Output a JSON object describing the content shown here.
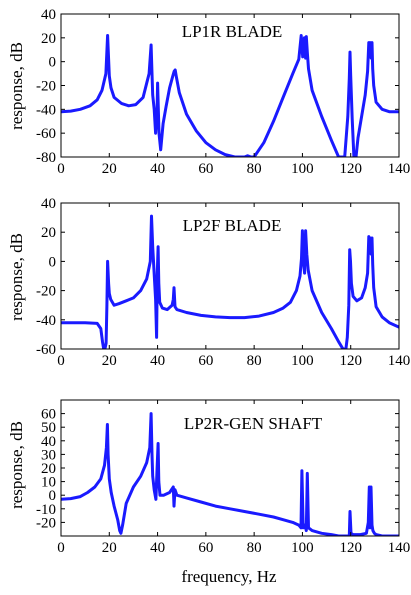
{
  "chart_data": [
    {
      "type": "line",
      "title": "LP1R BLADE",
      "xlabel": "",
      "ylabel": "response, dB",
      "xlim": [
        0,
        140
      ],
      "ylim": [
        -80,
        40
      ],
      "xticks": [
        "0",
        "20",
        "40",
        "60",
        "80",
        "100",
        "120",
        "140"
      ],
      "yticks": [
        "-80",
        "-60",
        "-40",
        "-20",
        "0",
        "20",
        "40"
      ],
      "grid": false,
      "series": [
        {
          "color": "#1a1aff",
          "x": [
            0,
            4,
            8,
            12,
            15,
            17,
            18.6,
            19.3,
            19.7,
            20,
            20.7,
            22,
            25,
            28,
            31,
            34,
            36.5,
            37.3,
            37.7,
            38,
            38.6,
            39.2,
            39.8,
            40,
            40.6,
            41.3,
            42.3,
            43.5,
            45,
            46.3,
            46.9,
            47.3,
            47.7,
            49,
            52,
            56,
            60,
            64,
            68,
            72,
            76,
            77.3,
            78.7,
            80,
            84,
            88,
            92,
            96,
            98.5,
            99.5,
            100.1,
            100.4,
            100.8,
            101.3,
            101.6,
            102,
            102.5,
            104,
            108,
            112,
            115,
            117.5,
            118.8,
            119.4,
            119.7,
            120,
            120.6,
            121.3,
            121.9,
            122.2,
            123,
            124.5,
            126,
            127,
            127.5,
            127.8,
            128.1,
            128.5,
            128.8,
            129.1,
            129.5,
            130.5,
            133,
            136,
            140
          ],
          "y": [
            -42,
            -41.5,
            -40,
            -37,
            -32,
            -24,
            -10,
            22,
            2,
            -12,
            -22,
            -30,
            -35,
            -37,
            -36,
            -30,
            -10,
            14,
            -10,
            -28,
            -40,
            -60,
            -40,
            -18,
            -60,
            -74,
            -52,
            -38,
            -22,
            -12,
            -8,
            -7,
            -12,
            -26,
            -44,
            -58,
            -68,
            -74,
            -78,
            -80,
            -80,
            -79,
            -80,
            -80,
            -68,
            -50,
            -30,
            -10,
            2,
            22,
            4,
            12,
            20,
            3,
            21,
            8,
            -6,
            -24,
            -46,
            -66,
            -80,
            -80,
            -46,
            -14,
            8,
            -12,
            -48,
            -80,
            -80,
            -80,
            -64,
            -46,
            -28,
            -8,
            16,
            6,
            16,
            3,
            16,
            -6,
            -20,
            -34,
            -40,
            -42,
            -42
          ]
        }
      ]
    },
    {
      "type": "line",
      "title": "LP2F BLADE",
      "xlabel": "",
      "ylabel": "response, dB",
      "xlim": [
        0,
        140
      ],
      "ylim": [
        -60,
        40
      ],
      "xticks": [
        "0",
        "20",
        "40",
        "60",
        "80",
        "100",
        "120",
        "140"
      ],
      "yticks": [
        "-60",
        "-40",
        "-20",
        "0",
        "20",
        "40"
      ],
      "grid": false,
      "series": [
        {
          "color": "#1a1aff",
          "x": [
            0,
            5,
            10,
            15,
            16.5,
            17.2,
            17.7,
            18.2,
            18.7,
            19,
            19.3,
            19.7,
            20,
            20.6,
            22,
            24,
            27,
            30,
            33,
            35.5,
            37,
            37.5,
            38,
            38.5,
            39.2,
            39.6,
            39.9,
            40.2,
            40.5,
            40.9,
            42,
            44,
            46,
            46.5,
            46.8,
            47.2,
            48,
            52,
            58,
            64,
            70,
            76,
            82,
            88,
            92,
            95,
            97.5,
            99,
            99.6,
            100,
            100.4,
            100.9,
            101.3,
            101.8,
            102.4,
            104,
            108,
            112,
            115,
            116.8,
            117.5,
            118,
            118.6,
            119.2,
            119.6,
            119.9,
            120.3,
            121,
            122.5,
            124.5,
            126,
            127,
            127.5,
            127.8,
            128.1,
            128.5,
            128.8,
            129.1,
            129.5,
            130.5,
            133,
            136,
            140
          ],
          "y": [
            -42,
            -42,
            -42,
            -42.5,
            -46,
            -55,
            -60,
            -60,
            -56,
            -30,
            0,
            -15,
            -22,
            -26,
            -30,
            -29,
            -27,
            -25,
            -20,
            -12,
            0,
            31,
            10,
            -5,
            -26,
            -52,
            -8,
            10,
            -15,
            -28,
            -32,
            -33,
            -30,
            -26,
            -18,
            -31,
            -33,
            -35,
            -37,
            -38,
            -38.5,
            -38.5,
            -37.5,
            -35,
            -32,
            -28,
            -20,
            -10,
            2,
            21,
            0,
            -8,
            21,
            5,
            -6,
            -20,
            -35,
            -46,
            -55,
            -60,
            -60,
            -60,
            -52,
            -30,
            8,
            0,
            -15,
            -24,
            -27,
            -25,
            -18,
            -8,
            17,
            8,
            16,
            5,
            16,
            -2,
            -18,
            -31,
            -38,
            -42,
            -45
          ]
        }
      ]
    },
    {
      "type": "line",
      "title": "LP2R-GEN SHAFT",
      "xlabel": "frequency, Hz",
      "ylabel": "response, dB",
      "xlim": [
        0,
        140
      ],
      "ylim": [
        -30,
        70
      ],
      "xticks": [
        "0",
        "20",
        "40",
        "60",
        "80",
        "100",
        "120",
        "140"
      ],
      "yticks": [
        "-20",
        "-10",
        "0",
        "10",
        "20",
        "30",
        "40",
        "50",
        "60"
      ],
      "grid": false,
      "series": [
        {
          "color": "#1a1aff",
          "x": [
            0,
            4,
            8,
            11,
            14,
            16.5,
            18,
            18.8,
            19.2,
            19.5,
            20,
            20.8,
            22,
            23.5,
            24.3,
            24.8,
            25.5,
            27,
            30,
            33,
            35.5,
            36.8,
            37.3,
            37.7,
            38,
            38.6,
            39.3,
            39.8,
            40.2,
            40.5,
            41,
            42.5,
            45,
            46.5,
            46.8,
            47.2,
            48,
            52,
            58,
            64,
            70,
            76,
            82,
            88,
            92,
            96,
            98.5,
            99.4,
            99.8,
            100.3,
            101,
            101.6,
            102,
            102.5,
            104,
            108,
            112,
            115,
            118,
            119.4,
            119.7,
            120.1,
            121,
            124,
            126.5,
            127.3,
            127.7,
            128,
            128.4,
            128.8,
            129.2,
            129.8,
            130.5,
            133,
            136,
            140
          ],
          "y": [
            -3,
            -2.5,
            -1,
            2,
            6,
            12,
            22,
            35,
            52,
            30,
            12,
            2,
            -8,
            -18,
            -26,
            -28,
            -22,
            -6,
            6,
            14,
            24,
            35,
            60,
            30,
            14,
            4,
            -3,
            20,
            38,
            10,
            0,
            0,
            2,
            6,
            -8,
            4,
            0,
            -2,
            -5,
            -8,
            -10,
            -12,
            -14,
            -16,
            -18,
            -20,
            -22,
            -24,
            18,
            -24,
            -22,
            -26,
            16,
            -24,
            -26,
            -28,
            -29,
            -30,
            -30,
            -30,
            -12,
            -28,
            -29,
            -29,
            -28,
            -20,
            6,
            -24,
            6,
            -22,
            -26,
            -28,
            -29,
            -30,
            -30,
            -30
          ]
        }
      ]
    }
  ]
}
